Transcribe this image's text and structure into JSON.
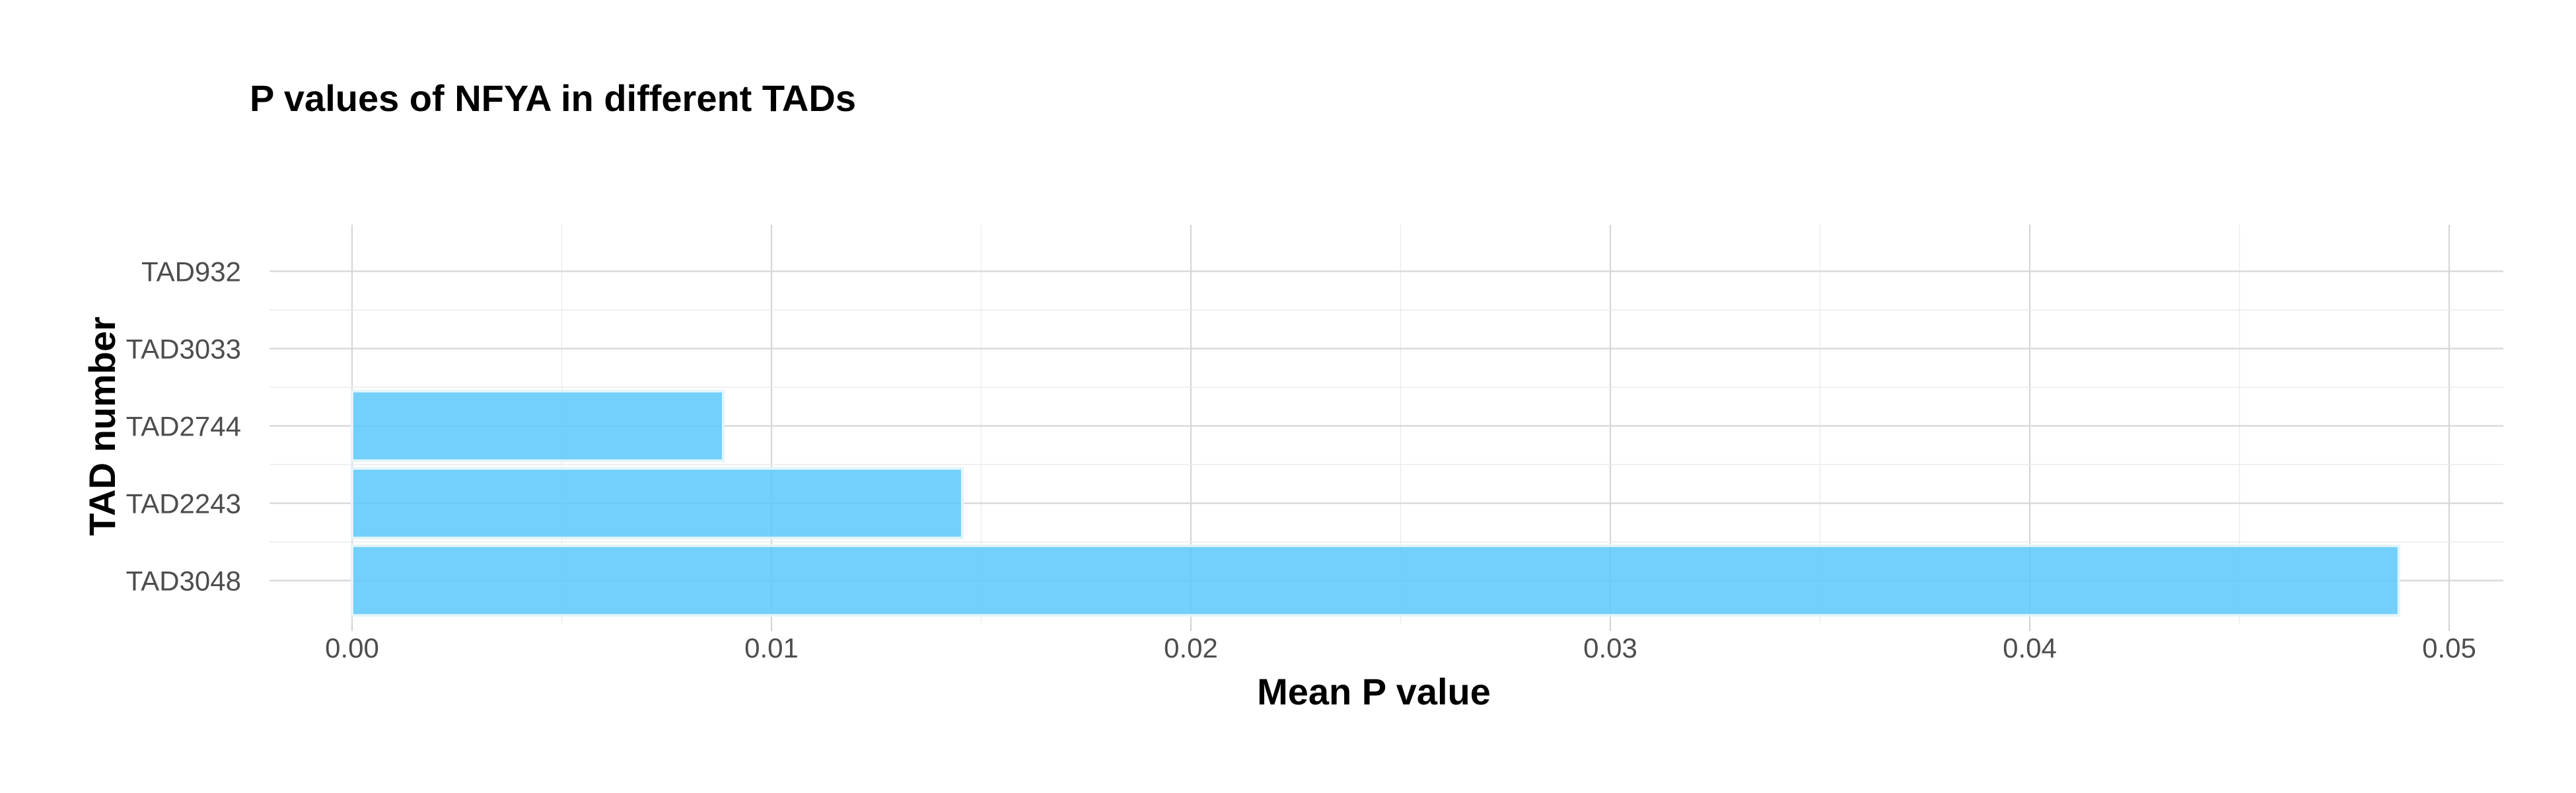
{
  "chart_data": {
    "type": "bar",
    "orientation": "horizontal",
    "title": "P values of NFYA in different TADs",
    "xlabel": "Mean P value",
    "ylabel": "TAD number",
    "categories": [
      "TAD3048",
      "TAD2243",
      "TAD2744",
      "TAD3033",
      "TAD932"
    ],
    "values": [
      0.0488,
      0.01455,
      0.00885,
      0.0,
      0.0
    ],
    "xlim": [
      0,
      0.0512
    ],
    "x_ticks": [
      0.0,
      0.01,
      0.02,
      0.03,
      0.04,
      0.05
    ],
    "x_tick_labels": [
      "0.00",
      "0.01",
      "0.02",
      "0.03",
      "0.04",
      "0.05"
    ],
    "grid": true,
    "bar_color": "#5BC8FA"
  }
}
